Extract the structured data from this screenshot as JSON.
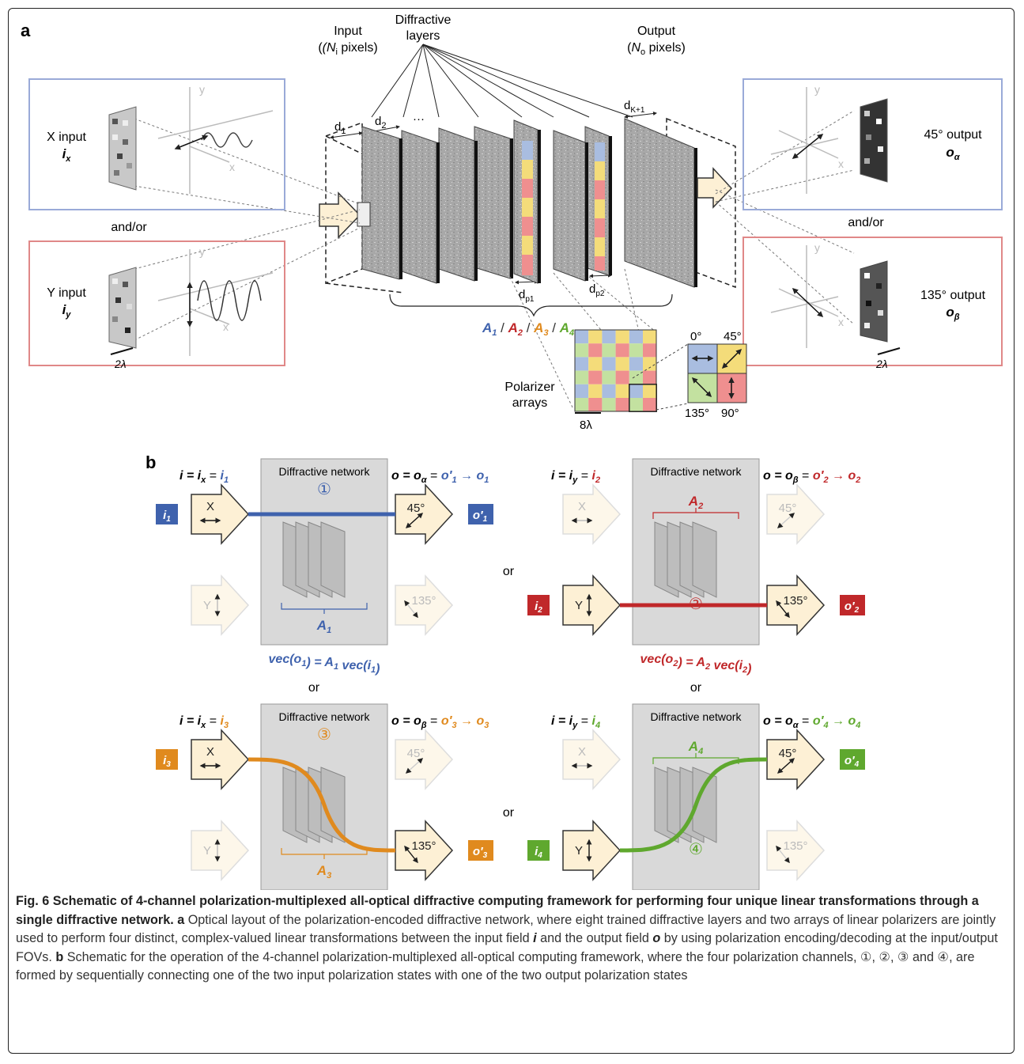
{
  "panel_a": {
    "label": "a",
    "header_input": "Input",
    "header_input_sub": "(N",
    "header_input_sub_i": "i",
    "header_input_sub_end": " pixels)",
    "header_layers_1": "Diffractive",
    "header_layers_2": "layers",
    "header_output": "Output",
    "header_output_sub": "(N",
    "header_output_sub_o": "o",
    "header_output_sub_end": " pixels)",
    "d1": "d",
    "d1_sub": "1",
    "d2": "d",
    "d2_sub": "2",
    "dots": "···",
    "dk": "d",
    "dk_sub": "K+1",
    "dp1": "d",
    "dp1_sub": "p1",
    "dp2": "d",
    "dp2_sub": "p2",
    "x_input_label": "X input",
    "x_input_var": "i",
    "x_input_sub": "x",
    "y_input_label": "Y input",
    "y_input_var": "i",
    "y_input_sub": "y",
    "and_or": "and/or",
    "out45_label": "45° output",
    "out45_var": "o",
    "out45_sub": "α",
    "out135_label": "135° output",
    "out135_var": "o",
    "out135_sub": "β",
    "scale_2lambda": "2λ",
    "scale_8lambda": "8λ",
    "axis_x": "x",
    "axis_y": "y",
    "polarizer_label_1": "Polarizer",
    "polarizer_label_2": "arrays",
    "angle_0": "0°",
    "angle_45": "45°",
    "angle_90": "90°",
    "angle_135": "135°",
    "transform_labels": [
      "A",
      "A",
      "A",
      "A"
    ],
    "transform_subs": [
      "1",
      "2",
      "3",
      "4"
    ],
    "slash": " / "
  },
  "panel_b": {
    "label": "b",
    "box_title": "Diffractive network",
    "or": "or",
    "x_label": "X",
    "y_label": "Y",
    "deg45": "45°",
    "deg135": "135°",
    "channels": [
      {
        "num": "①",
        "color": "#3f62ad",
        "in_eq": "i = i",
        "in_sub": "x",
        "in_var": "i",
        "in_var_sub": "1",
        "out_eq": "o = o",
        "out_sub": "α",
        "out_var": "o′",
        "out_var_sub": "1",
        "arrow": "→",
        "final": "o",
        "final_sub": "1",
        "A": "A",
        "A_sub": "1",
        "equation": "vec(o1) = A1 vec(i1)",
        "badge_in": "i",
        "badge_in_sub": "1",
        "badge_out": "o′",
        "badge_out_sub": "1"
      },
      {
        "num": "②",
        "color": "#c0282a",
        "in_eq": "i = i",
        "in_sub": "y",
        "in_var": "i",
        "in_var_sub": "2",
        "out_eq": "o = o",
        "out_sub": "β",
        "out_var": "o′",
        "out_var_sub": "2",
        "arrow": "→",
        "final": "o",
        "final_sub": "2",
        "A": "A",
        "A_sub": "2",
        "equation": "vec(o2) = A2 vec(i2)",
        "badge_in": "i",
        "badge_in_sub": "2",
        "badge_out": "o′",
        "badge_out_sub": "2"
      },
      {
        "num": "③",
        "color": "#e08a1e",
        "in_eq": "i = i",
        "in_sub": "x",
        "in_var": "i",
        "in_var_sub": "3",
        "out_eq": "o = o",
        "out_sub": "β",
        "out_var": "o′",
        "out_var_sub": "3",
        "arrow": "→",
        "final": "o",
        "final_sub": "3",
        "A": "A",
        "A_sub": "3",
        "equation": "vec(o3) = A3 vec(i3)",
        "badge_in": "i",
        "badge_in_sub": "3",
        "badge_out": "o′",
        "badge_out_sub": "3"
      },
      {
        "num": "④",
        "color": "#5fa82e",
        "in_eq": "i = i",
        "in_sub": "y",
        "in_var": "i",
        "in_var_sub": "4",
        "out_eq": "o = o",
        "out_sub": "α",
        "out_var": "o′",
        "out_var_sub": "4",
        "arrow": "→",
        "final": "o",
        "final_sub": "4",
        "A": "A",
        "A_sub": "4",
        "equation": "vec(o4) = A4 vec(i4)",
        "badge_in": "i",
        "badge_in_sub": "4",
        "badge_out": "o′",
        "badge_out_sub": "4"
      }
    ]
  },
  "caption": {
    "title": "Fig. 6 Schematic of 4-channel polarization-multiplexed all-optical diffractive computing framework for performing four unique linear transformations through a single diffractive network.",
    "a_label": "a",
    "a_text_1": " Optical layout of the polarization-encoded diffractive network, where eight trained diffractive layers and two arrays of linear polarizers are jointly used to perform four distinct, complex-valued linear transformations between the input field ",
    "a_i": "i",
    "a_text_2": " and the output field ",
    "a_o": "o",
    "a_text_3": " by using polarization encoding/decoding at the input/output FOVs. ",
    "b_label": "b",
    "b_text": " Schematic for the operation of the 4-channel polarization-multiplexed all-optical computing framework, where the four polarization channels, ①, ②, ③ and ④, are formed by sequentially connecting one of the two input polarization states with one of the two output polarization states"
  },
  "colors": {
    "blue": "#3f62ad",
    "red": "#c0282a",
    "orange": "#e08a1e",
    "green": "#5fa82e",
    "pol_blue": "#a9bde0",
    "pol_yellow": "#f4dc7a",
    "pol_red": "#ef8f8f",
    "pol_green": "#c3e1a0",
    "arrow_fill": "#fdf0d5"
  }
}
